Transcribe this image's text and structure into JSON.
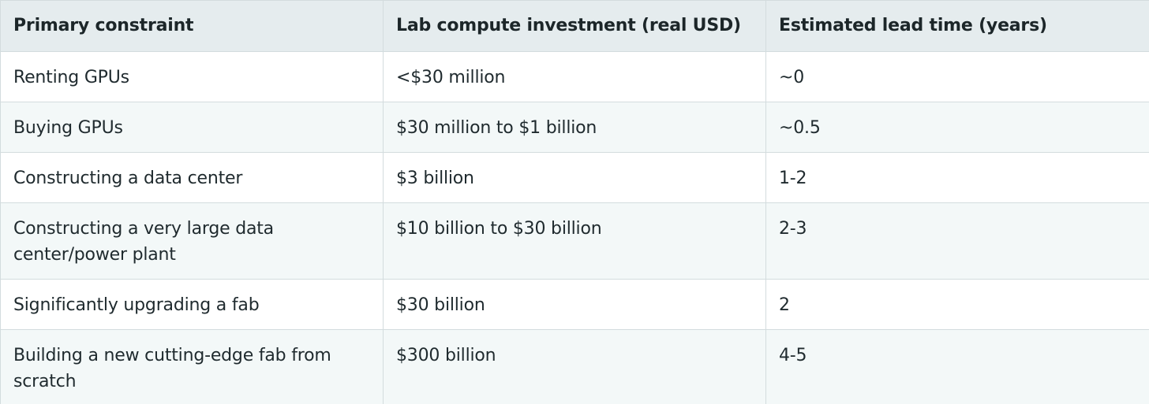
{
  "table": {
    "headers": [
      "Primary constraint",
      "Lab compute investment (real USD)",
      "Estimated lead time (years)"
    ],
    "rows": [
      [
        "Renting GPUs",
        "<$30 million",
        "~0"
      ],
      [
        "Buying GPUs",
        "$30 million to $1 billion",
        "~0.5"
      ],
      [
        "Constructing a data center",
        "$3 billion",
        "1-2"
      ],
      [
        "Constructing a very large data center/power plant",
        "$10 billion to $30 billion",
        "2-3"
      ],
      [
        "Significantly upgrading a fab",
        "$30 billion",
        "2"
      ],
      [
        "Building a new cutting-edge fab from scratch",
        "$300 billion",
        "4-5"
      ]
    ]
  },
  "colors": {
    "header_bg": "#e5ecee",
    "row_odd_bg": "#ffffff",
    "row_even_bg": "#f3f8f8",
    "border": "#d3dcde",
    "text": "#1f2a2e"
  }
}
